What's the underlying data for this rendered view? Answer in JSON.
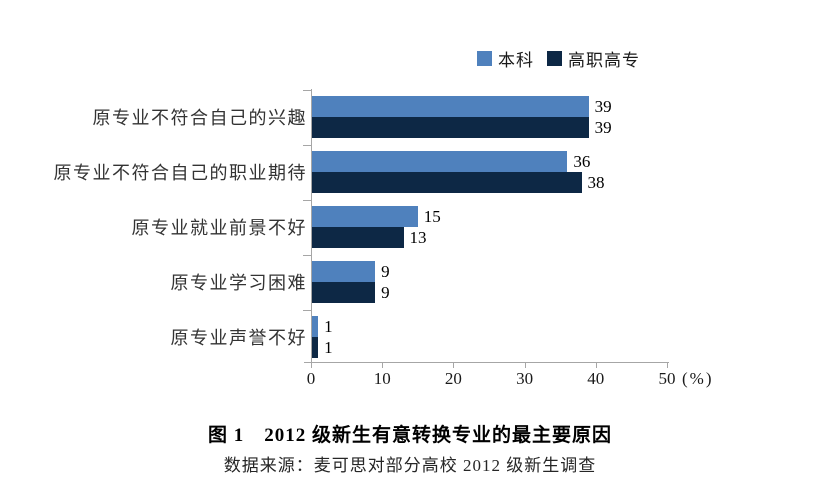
{
  "chart_data": {
    "type": "bar",
    "orientation": "horizontal",
    "categories": [
      "原专业不符合自己的兴趣",
      "原专业不符合自己的职业期待",
      "原专业就业前景不好",
      "原专业学习困难",
      "原专业声誉不好"
    ],
    "series": [
      {
        "name": "本科",
        "color": "#4F81BD",
        "values": [
          39,
          36,
          15,
          9,
          1
        ]
      },
      {
        "name": "高职高专",
        "color": "#0D2845",
        "values": [
          39,
          38,
          13,
          9,
          1
        ]
      }
    ],
    "xlim": [
      0,
      50
    ],
    "xticks": [
      0,
      10,
      20,
      30,
      40,
      50
    ],
    "x_unit_label": "(%)",
    "grid": false,
    "legend_position": "top-right",
    "value_labels": true,
    "axis_color": "#A6A6A6"
  },
  "caption": {
    "title": "图 1　2012 级新生有意转换专业的最主要原因",
    "source": "数据来源：麦可思对部分高校 2012 级新生调查"
  }
}
